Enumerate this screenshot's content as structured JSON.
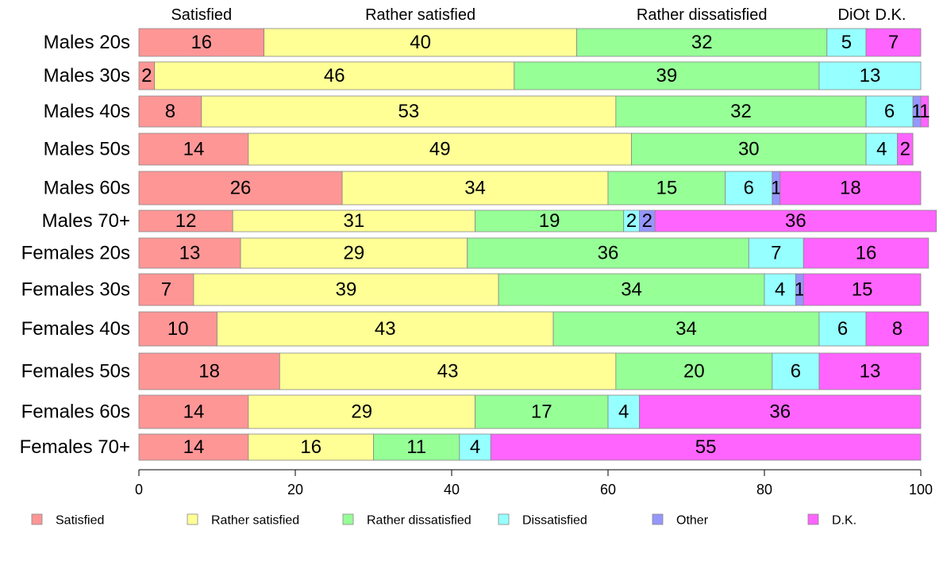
{
  "chart_data": {
    "type": "bar",
    "orientation": "horizontal",
    "stacked": true,
    "title": "",
    "xlabel": "",
    "ylabel": "",
    "xlim": [
      0,
      100
    ],
    "xticks": [
      0,
      20,
      40,
      60,
      80,
      100
    ],
    "grid": false,
    "legend_position": "bottom",
    "categories": [
      "Males 20s",
      "Males 30s",
      "Males 40s",
      "Males 50s",
      "Males 60s",
      "Males 70+",
      "Females 20s",
      "Females 30s",
      "Females 40s",
      "Females 50s",
      "Females 60s",
      "Females 70+"
    ],
    "series": [
      {
        "name": "Satisfied",
        "color": "#ff9696",
        "values": [
          16,
          2,
          8,
          14,
          26,
          12,
          13,
          7,
          10,
          18,
          14,
          14
        ]
      },
      {
        "name": "Rather satisfied",
        "color": "#ffff96",
        "values": [
          40,
          46,
          53,
          49,
          34,
          31,
          29,
          39,
          43,
          43,
          29,
          16
        ]
      },
      {
        "name": "Rather dissatisfied",
        "color": "#96ff96",
        "values": [
          32,
          39,
          32,
          30,
          15,
          19,
          36,
          34,
          34,
          20,
          17,
          11
        ]
      },
      {
        "name": "Dissatisfied",
        "color": "#96ffff",
        "values": [
          5,
          13,
          6,
          4,
          6,
          2,
          7,
          4,
          6,
          6,
          4,
          4
        ]
      },
      {
        "name": "Other",
        "color": "#9696ff",
        "values": [
          0,
          0,
          1,
          0,
          1,
          2,
          0,
          1,
          0,
          0,
          0,
          0
        ]
      },
      {
        "name": "D.K.",
        "color": "#ff64ff",
        "values": [
          7,
          0,
          1,
          2,
          18,
          36,
          16,
          15,
          8,
          13,
          36,
          55
        ]
      }
    ],
    "top_labels": [
      "Satisfied",
      "Rather satisfied",
      "Rather dissatisfied",
      "Di",
      "Ot",
      "D.K."
    ]
  }
}
